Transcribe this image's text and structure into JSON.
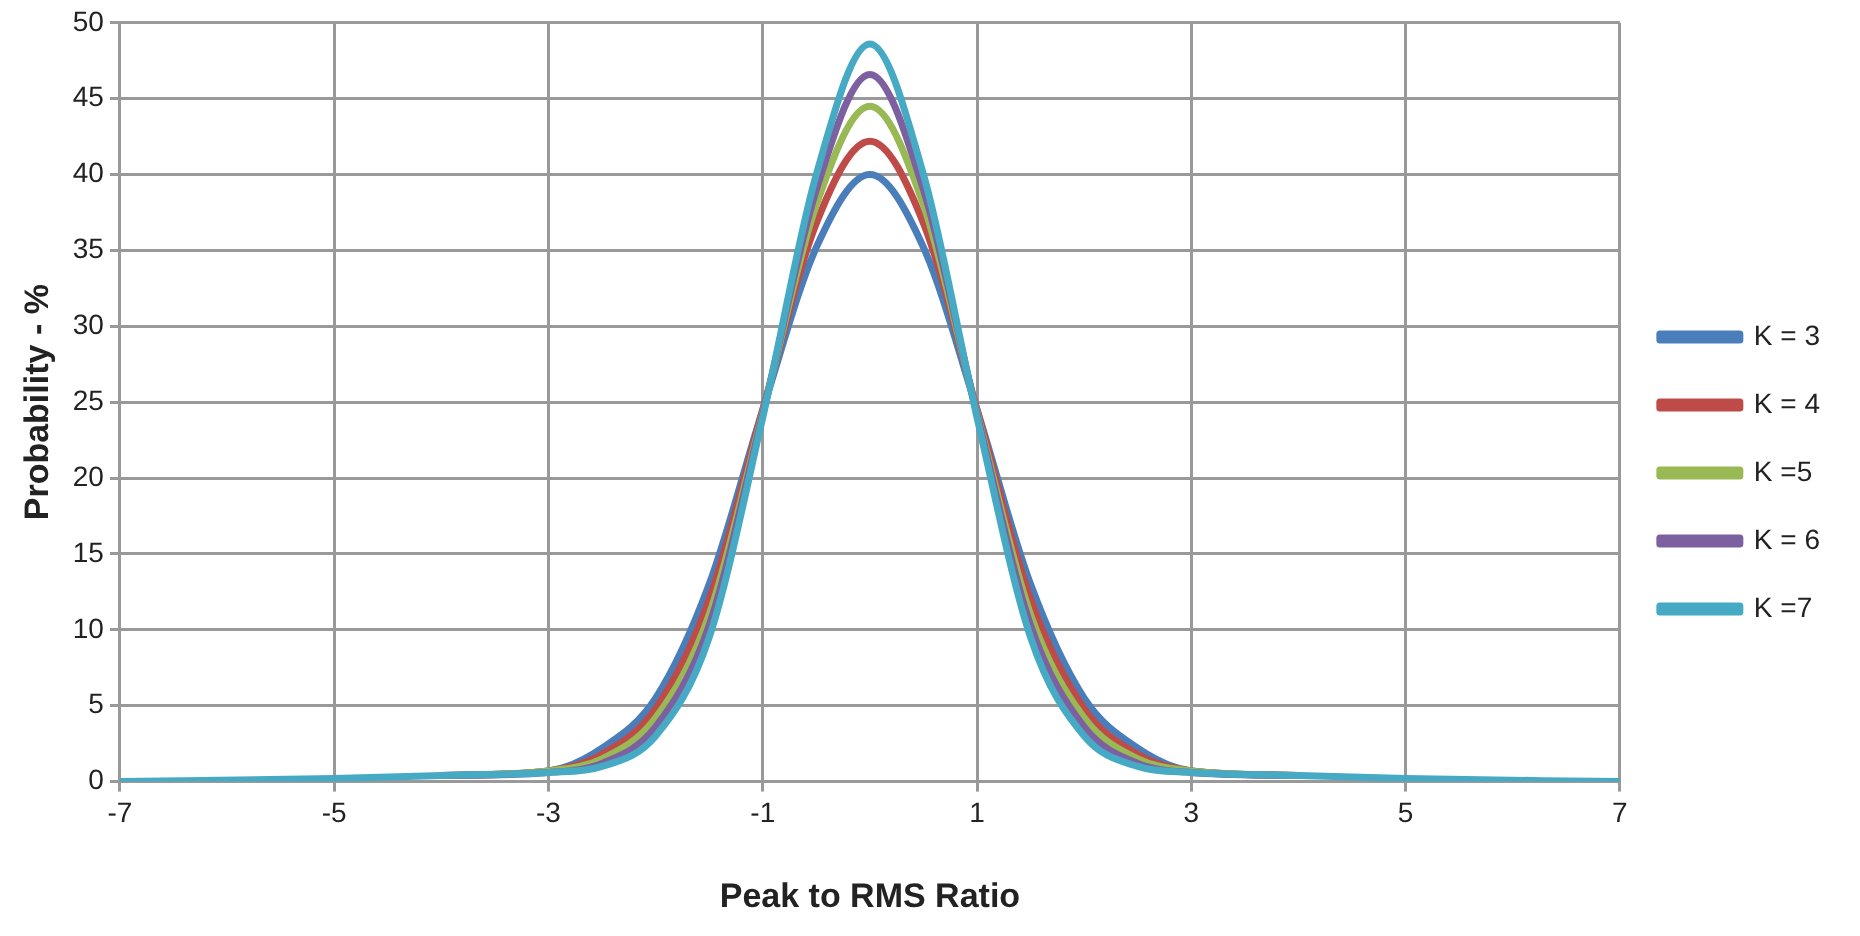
{
  "chart_data": {
    "type": "line",
    "xlabel": "Peak to RMS Ratio",
    "ylabel": "Probability - %",
    "x": [
      -7,
      -5,
      -4,
      -3,
      -2.5,
      -2,
      -1.5,
      -1,
      -0.5,
      0,
      0.5,
      1,
      1.5,
      2,
      2.5,
      3,
      4,
      5,
      7
    ],
    "series": [
      {
        "name": "K = 3",
        "color": "#4a7ebb",
        "values": [
          null,
          null,
          0.4,
          0.7,
          2.2,
          5.5,
          13,
          24.5,
          35.2,
          40,
          35.2,
          24.5,
          13,
          5.5,
          2.2,
          0.7,
          0.4,
          null,
          null
        ]
      },
      {
        "name": "K = 4",
        "color": "#be4b48",
        "values": [
          null,
          null,
          0.4,
          0.7,
          1.8,
          4.8,
          12,
          24.5,
          36.8,
          42.2,
          36.8,
          24.5,
          12,
          4.8,
          1.8,
          0.7,
          0.4,
          null,
          null
        ]
      },
      {
        "name": "K =5",
        "color": "#98b954",
        "values": [
          null,
          null,
          0.4,
          0.7,
          1.5,
          4.2,
          11,
          24.3,
          38,
          44.5,
          38,
          24.3,
          11,
          4.2,
          1.5,
          0.7,
          0.4,
          null,
          null
        ]
      },
      {
        "name": "K = 6",
        "color": "#7d60a0",
        "values": [
          null,
          null,
          0.4,
          0.6,
          1.2,
          3.6,
          10.3,
          24.2,
          39,
          46.6,
          39,
          24.2,
          10.3,
          3.6,
          1.2,
          0.6,
          0.4,
          null,
          null
        ]
      },
      {
        "name": "K =7",
        "color": "#46aac5",
        "values": [
          0,
          0.2,
          0.4,
          0.6,
          1,
          3,
          9.5,
          24,
          40,
          48.6,
          40,
          24,
          9.5,
          3,
          1,
          0.6,
          0.4,
          0.2,
          0
        ]
      }
    ],
    "xlim": [
      -7,
      7
    ],
    "xticks": [
      -7,
      -5,
      -3,
      -1,
      1,
      3,
      5,
      7
    ],
    "ylim": [
      0,
      50
    ],
    "yticks": [
      0,
      5,
      10,
      15,
      20,
      25,
      30,
      35,
      40,
      45,
      50
    ],
    "grid": true,
    "legend": "right",
    "marker": "none",
    "line_style": "solid"
  }
}
